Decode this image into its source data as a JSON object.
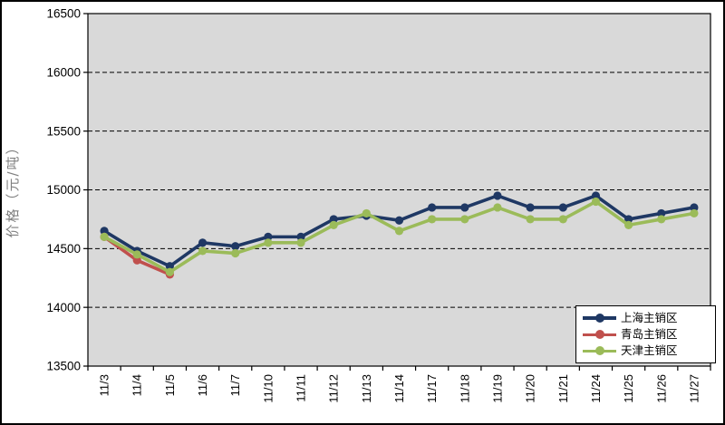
{
  "window": {
    "background": "#FFFFFF",
    "frame_color": "#000000"
  },
  "chart_data": {
    "type": "line",
    "title": "",
    "xlabel": "",
    "ylabel": "价格（元/吨）",
    "ylabel_color": "#7F7F7F",
    "ylim": [
      13500,
      16500
    ],
    "ytick_step": 500,
    "yticks": [
      13500,
      14000,
      14500,
      15000,
      15500,
      16000,
      16500
    ],
    "grid": "horizontal-dashed",
    "grid_color": "#000000",
    "axis_color": "#000000",
    "plot_background": "#D9D9D9",
    "legend_position": "inside-bottom-right",
    "categories": [
      "11/3",
      "11/4",
      "11/5",
      "11/6",
      "11/7",
      "11/10",
      "11/11",
      "11/12",
      "11/13",
      "11/14",
      "11/17",
      "11/18",
      "11/19",
      "11/20",
      "11/21",
      "11/24",
      "11/25",
      "11/26",
      "11/27"
    ],
    "series": [
      {
        "name": "上海主销区",
        "key": "shanghai",
        "color": "#1F3864",
        "marker": "circle",
        "values": [
          14650,
          14480,
          14350,
          14550,
          14520,
          14600,
          14600,
          14750,
          14780,
          14740,
          14850,
          14850,
          14950,
          14850,
          14850,
          14950,
          14750,
          14800,
          14850
        ]
      },
      {
        "name": "青岛主销区",
        "key": "qingdao",
        "color": "#C0504D",
        "marker": "circle",
        "values": [
          14600,
          14400,
          14280,
          null,
          null,
          null,
          null,
          null,
          null,
          null,
          null,
          null,
          null,
          null,
          null,
          null,
          null,
          null,
          null
        ]
      },
      {
        "name": "天津主销区",
        "key": "tianjin",
        "color": "#9BBB59",
        "marker": "circle",
        "values": [
          14600,
          14450,
          14300,
          14480,
          14460,
          14550,
          14550,
          14700,
          14800,
          14650,
          14750,
          14750,
          14850,
          14750,
          14750,
          14900,
          14700,
          14750,
          14800
        ]
      }
    ]
  }
}
